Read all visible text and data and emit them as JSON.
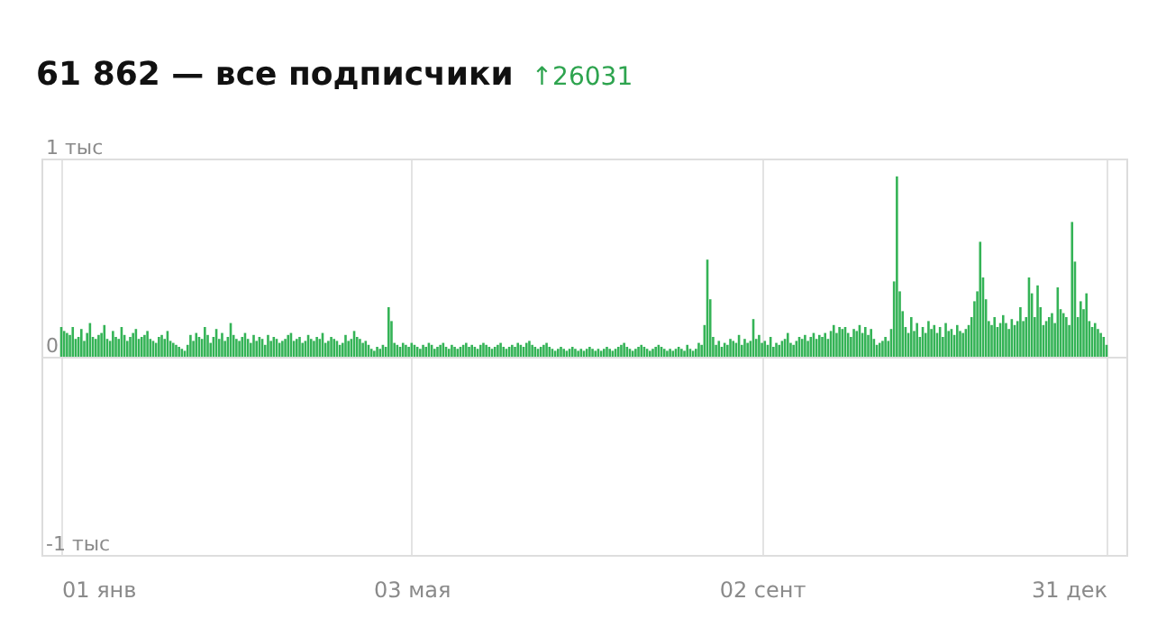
{
  "chart_data": {
    "type": "bar",
    "title": "61 862 — все подписчики",
    "subtitle": "↑26031",
    "color": "#34b356",
    "grid": true,
    "ylim": [
      -1,
      1
    ],
    "yticks": [
      {
        "value": -1,
        "label": "-1 тыс"
      },
      0,
      {
        "value": 1,
        "label": "1 тыс"
      }
    ],
    "xlim": [
      "--01-01",
      "--12-31"
    ],
    "xticks": [
      {
        "value": "--01-01",
        "label": "01 янв"
      },
      {
        "value": "--05-03",
        "label": "03 мая"
      },
      {
        "value": "--09-02",
        "label": "02 сент"
      },
      {
        "value": "--12-31",
        "label": "31 дек"
      }
    ],
    "x": [
      "--01-01",
      "--01-02",
      "--01-03",
      "--01-04",
      "--01-05",
      "--01-06",
      "--01-07",
      "--01-08",
      "--01-09",
      "--01-10",
      "--01-11",
      "--01-12",
      "--01-13",
      "--01-14",
      "--01-15",
      "--01-16",
      "--01-17",
      "--01-18",
      "--01-19",
      "--01-20",
      "--01-21",
      "--01-22",
      "--01-23",
      "--01-24",
      "--01-25",
      "--01-26",
      "--01-27",
      "--01-28",
      "--01-29",
      "--01-30",
      "--01-31",
      "--02-01",
      "--02-02",
      "--02-03",
      "--02-04",
      "--02-05",
      "--02-06",
      "--02-07",
      "--02-08",
      "--02-09",
      "--02-10",
      "--02-11",
      "--02-12",
      "--02-13",
      "--02-14",
      "--02-15",
      "--02-16",
      "--02-17",
      "--02-18",
      "--02-19",
      "--02-20",
      "--02-21",
      "--02-22",
      "--02-23",
      "--02-24",
      "--02-25",
      "--02-26",
      "--02-27",
      "--02-28",
      "--03-01",
      "--03-02",
      "--03-03",
      "--03-04",
      "--03-05",
      "--03-06",
      "--03-07",
      "--03-08",
      "--03-09",
      "--03-10",
      "--03-11",
      "--03-12",
      "--03-13",
      "--03-14",
      "--03-15",
      "--03-16",
      "--03-17",
      "--03-18",
      "--03-19",
      "--03-20",
      "--03-21",
      "--03-22",
      "--03-23",
      "--03-24",
      "--03-25",
      "--03-26",
      "--03-27",
      "--03-28",
      "--03-29",
      "--03-30",
      "--03-31",
      "--04-01",
      "--04-02",
      "--04-03",
      "--04-04",
      "--04-05",
      "--04-06",
      "--04-07",
      "--04-08",
      "--04-09",
      "--04-10",
      "--04-11",
      "--04-12",
      "--04-13",
      "--04-14",
      "--04-15",
      "--04-16",
      "--04-17",
      "--04-18",
      "--04-19",
      "--04-20",
      "--04-21",
      "--04-22",
      "--04-23",
      "--04-24",
      "--04-25",
      "--04-26",
      "--04-27",
      "--04-28",
      "--04-29",
      "--04-30",
      "--05-01",
      "--05-02",
      "--05-03",
      "--05-04",
      "--05-05",
      "--05-06",
      "--05-07",
      "--05-08",
      "--05-09",
      "--05-10",
      "--05-11",
      "--05-12",
      "--05-13",
      "--05-14",
      "--05-15",
      "--05-16",
      "--05-17",
      "--05-18",
      "--05-19",
      "--05-20",
      "--05-21",
      "--05-22",
      "--05-23",
      "--05-24",
      "--05-25",
      "--05-26",
      "--05-27",
      "--05-28",
      "--05-29",
      "--05-30",
      "--05-31",
      "--06-01",
      "--06-02",
      "--06-03",
      "--06-04",
      "--06-05",
      "--06-06",
      "--06-07",
      "--06-08",
      "--06-09",
      "--06-10",
      "--06-11",
      "--06-12",
      "--06-13",
      "--06-14",
      "--06-15",
      "--06-16",
      "--06-17",
      "--06-18",
      "--06-19",
      "--06-20",
      "--06-21",
      "--06-22",
      "--06-23",
      "--06-24",
      "--06-25",
      "--06-26",
      "--06-27",
      "--06-28",
      "--06-29",
      "--06-30",
      "--07-01",
      "--07-02",
      "--07-03",
      "--07-04",
      "--07-05",
      "--07-06",
      "--07-07",
      "--07-08",
      "--07-09",
      "--07-10",
      "--07-11",
      "--07-12",
      "--07-13",
      "--07-14",
      "--07-15",
      "--07-16",
      "--07-17",
      "--07-18",
      "--07-19",
      "--07-20",
      "--07-21",
      "--07-22",
      "--07-23",
      "--07-24",
      "--07-25",
      "--07-26",
      "--07-27",
      "--07-28",
      "--07-29",
      "--07-30",
      "--07-31",
      "--08-01",
      "--08-02",
      "--08-03",
      "--08-04",
      "--08-05",
      "--08-06",
      "--08-07",
      "--08-08",
      "--08-09",
      "--08-10",
      "--08-11",
      "--08-12",
      "--08-13",
      "--08-14",
      "--08-15",
      "--08-16",
      "--08-17",
      "--08-18",
      "--08-19",
      "--08-20",
      "--08-21",
      "--08-22",
      "--08-23",
      "--08-24",
      "--08-25",
      "--08-26",
      "--08-27",
      "--08-28",
      "--08-29",
      "--08-30",
      "--08-31",
      "--09-01",
      "--09-02",
      "--09-03",
      "--09-04",
      "--09-05",
      "--09-06",
      "--09-07",
      "--09-08",
      "--09-09",
      "--09-10",
      "--09-11",
      "--09-12",
      "--09-13",
      "--09-14",
      "--09-15",
      "--09-16",
      "--09-17",
      "--09-18",
      "--09-19",
      "--09-20",
      "--09-21",
      "--09-22",
      "--09-23",
      "--09-24",
      "--09-25",
      "--09-26",
      "--09-27",
      "--09-28",
      "--09-29",
      "--09-30",
      "--10-01",
      "--10-02",
      "--10-03",
      "--10-04",
      "--10-05",
      "--10-06",
      "--10-07",
      "--10-08",
      "--10-09",
      "--10-10",
      "--10-11",
      "--10-12",
      "--10-13",
      "--10-14",
      "--10-15",
      "--10-16",
      "--10-17",
      "--10-18",
      "--10-19",
      "--10-20",
      "--10-21",
      "--10-22",
      "--10-23",
      "--10-24",
      "--10-25",
      "--10-26",
      "--10-27",
      "--10-28",
      "--10-29",
      "--10-30",
      "--10-31",
      "--11-01",
      "--11-02",
      "--11-03",
      "--11-04",
      "--11-05",
      "--11-06",
      "--11-07",
      "--11-08",
      "--11-09",
      "--11-10",
      "--11-11",
      "--11-12",
      "--11-13",
      "--11-14",
      "--11-15",
      "--11-16",
      "--11-17",
      "--11-18",
      "--11-19",
      "--11-20",
      "--11-21",
      "--11-22",
      "--11-23",
      "--11-24",
      "--11-25",
      "--11-26",
      "--11-27",
      "--11-28",
      "--11-29",
      "--11-30",
      "--12-01",
      "--12-02",
      "--12-03",
      "--12-04",
      "--12-05",
      "--12-06",
      "--12-07",
      "--12-08",
      "--12-09",
      "--12-10",
      "--12-11",
      "--12-12",
      "--12-13",
      "--12-14",
      "--12-15",
      "--12-16",
      "--12-17",
      "--12-18",
      "--12-19",
      "--12-20",
      "--12-21",
      "--12-22",
      "--12-23",
      "--12-24",
      "--12-25",
      "--12-26",
      "--12-27",
      "--12-28",
      "--12-29",
      "--12-30",
      "--12-31"
    ],
    "values": [
      0.15,
      0.13,
      0.12,
      0.11,
      0.15,
      0.09,
      0.1,
      0.14,
      0.08,
      0.12,
      0.17,
      0.1,
      0.09,
      0.11,
      0.12,
      0.16,
      0.09,
      0.08,
      0.13,
      0.1,
      0.09,
      0.15,
      0.11,
      0.08,
      0.1,
      0.12,
      0.14,
      0.09,
      0.1,
      0.11,
      0.13,
      0.09,
      0.08,
      0.07,
      0.1,
      0.11,
      0.09,
      0.13,
      0.08,
      0.07,
      0.06,
      0.05,
      0.04,
      0.03,
      0.06,
      0.11,
      0.08,
      0.12,
      0.1,
      0.09,
      0.15,
      0.11,
      0.07,
      0.1,
      0.14,
      0.09,
      0.12,
      0.08,
      0.1,
      0.17,
      0.11,
      0.09,
      0.08,
      0.1,
      0.12,
      0.09,
      0.07,
      0.11,
      0.08,
      0.1,
      0.09,
      0.06,
      0.11,
      0.08,
      0.1,
      0.09,
      0.07,
      0.08,
      0.09,
      0.11,
      0.12,
      0.08,
      0.09,
      0.1,
      0.07,
      0.08,
      0.11,
      0.09,
      0.08,
      0.1,
      0.09,
      0.12,
      0.07,
      0.08,
      0.1,
      0.09,
      0.08,
      0.06,
      0.07,
      0.11,
      0.08,
      0.09,
      0.13,
      0.1,
      0.09,
      0.07,
      0.08,
      0.06,
      0.04,
      0.03,
      0.05,
      0.04,
      0.06,
      0.05,
      0.25,
      0.18,
      0.07,
      0.06,
      0.05,
      0.07,
      0.06,
      0.05,
      0.07,
      0.06,
      0.05,
      0.04,
      0.06,
      0.05,
      0.07,
      0.06,
      0.04,
      0.05,
      0.06,
      0.07,
      0.05,
      0.04,
      0.06,
      0.05,
      0.04,
      0.05,
      0.06,
      0.07,
      0.05,
      0.06,
      0.05,
      0.04,
      0.06,
      0.07,
      0.06,
      0.05,
      0.04,
      0.05,
      0.06,
      0.07,
      0.05,
      0.04,
      0.05,
      0.06,
      0.05,
      0.07,
      0.06,
      0.05,
      0.07,
      0.08,
      0.06,
      0.05,
      0.04,
      0.05,
      0.06,
      0.07,
      0.05,
      0.04,
      0.03,
      0.04,
      0.05,
      0.04,
      0.03,
      0.04,
      0.05,
      0.04,
      0.03,
      0.04,
      0.03,
      0.04,
      0.05,
      0.04,
      0.03,
      0.04,
      0.03,
      0.04,
      0.05,
      0.04,
      0.03,
      0.04,
      0.05,
      0.06,
      0.07,
      0.05,
      0.04,
      0.03,
      0.04,
      0.05,
      0.06,
      0.05,
      0.04,
      0.03,
      0.04,
      0.05,
      0.06,
      0.05,
      0.04,
      0.03,
      0.04,
      0.03,
      0.04,
      0.05,
      0.04,
      0.03,
      0.06,
      0.04,
      0.03,
      0.04,
      0.07,
      0.06,
      0.16,
      0.49,
      0.29,
      0.1,
      0.06,
      0.08,
      0.05,
      0.07,
      0.06,
      0.09,
      0.08,
      0.07,
      0.11,
      0.06,
      0.09,
      0.07,
      0.08,
      0.19,
      0.09,
      0.11,
      0.07,
      0.08,
      0.06,
      0.1,
      0.05,
      0.07,
      0.06,
      0.08,
      0.09,
      0.12,
      0.07,
      0.06,
      0.08,
      0.1,
      0.09,
      0.11,
      0.08,
      0.1,
      0.12,
      0.09,
      0.11,
      0.1,
      0.12,
      0.09,
      0.13,
      0.16,
      0.12,
      0.15,
      0.14,
      0.15,
      0.12,
      0.1,
      0.14,
      0.13,
      0.16,
      0.12,
      0.15,
      0.11,
      0.14,
      0.09,
      0.06,
      0.07,
      0.08,
      0.1,
      0.08,
      0.14,
      0.38,
      0.91,
      0.33,
      0.23,
      0.15,
      0.12,
      0.2,
      0.13,
      0.17,
      0.1,
      0.15,
      0.12,
      0.18,
      0.14,
      0.16,
      0.12,
      0.15,
      0.1,
      0.17,
      0.13,
      0.14,
      0.11,
      0.16,
      0.13,
      0.12,
      0.14,
      0.16,
      0.2,
      0.28,
      0.33,
      0.58,
      0.4,
      0.29,
      0.18,
      0.16,
      0.2,
      0.15,
      0.17,
      0.21,
      0.17,
      0.14,
      0.19,
      0.16,
      0.18,
      0.25,
      0.18,
      0.2,
      0.4,
      0.32,
      0.2,
      0.36,
      0.25,
      0.16,
      0.18,
      0.2,
      0.22,
      0.17,
      0.35,
      0.24,
      0.22,
      0.2,
      0.16,
      0.68,
      0.48,
      0.2,
      0.28,
      0.24,
      0.32,
      0.18,
      0.15,
      0.17,
      0.14,
      0.12,
      0.1,
      0.06
    ]
  }
}
